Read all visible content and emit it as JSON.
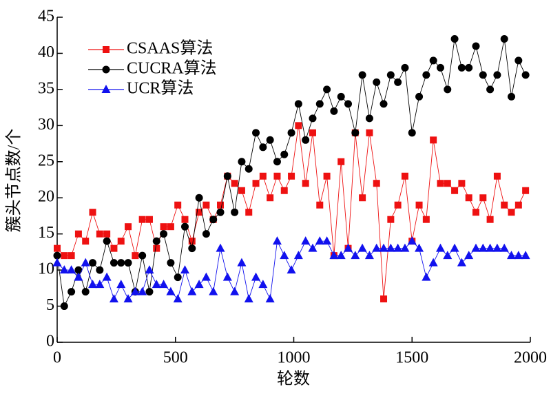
{
  "chart_data": {
    "type": "line",
    "xlabel": "轮数",
    "ylabel": "簇头节点数/个",
    "x": [
      0,
      30,
      60,
      90,
      120,
      150,
      180,
      210,
      240,
      270,
      300,
      330,
      360,
      390,
      420,
      450,
      480,
      510,
      540,
      570,
      600,
      630,
      660,
      690,
      720,
      750,
      780,
      810,
      840,
      870,
      900,
      930,
      960,
      990,
      1020,
      1050,
      1080,
      1110,
      1140,
      1170,
      1200,
      1230,
      1260,
      1290,
      1320,
      1350,
      1380,
      1410,
      1440,
      1470,
      1500,
      1530,
      1560,
      1590,
      1620,
      1650,
      1680,
      1710,
      1740,
      1770,
      1800,
      1830,
      1860,
      1890,
      1920,
      1950,
      1980
    ],
    "series": [
      {
        "name": "CSAAS算法",
        "color": "#ee1111",
        "marker": "square",
        "values": [
          13,
          12,
          12,
          15,
          14,
          18,
          15,
          15,
          13,
          14,
          16,
          12,
          17,
          17,
          13,
          16,
          16,
          19,
          17,
          14,
          18,
          19,
          17,
          19,
          23,
          22,
          21,
          18,
          22,
          23,
          20,
          23,
          21,
          23,
          30,
          22,
          29,
          19,
          23,
          12,
          25,
          13,
          29,
          20,
          29,
          22,
          6,
          17,
          19,
          23,
          14,
          19,
          17,
          28,
          22,
          22,
          21,
          22,
          20,
          18,
          20,
          17,
          23,
          19,
          18,
          19,
          21
        ]
      },
      {
        "name": "CUCRA算法",
        "color": "#000000",
        "marker": "circle",
        "values": [
          12,
          5,
          7,
          10,
          7,
          11,
          10,
          14,
          11,
          11,
          11,
          7,
          12,
          7,
          14,
          15,
          11,
          9,
          16,
          13,
          20,
          15,
          17,
          18,
          23,
          18,
          25,
          24,
          29,
          27,
          28,
          25,
          26,
          29,
          33,
          28,
          31,
          33,
          35,
          32,
          34,
          33,
          29,
          37,
          31,
          36,
          33,
          37,
          36,
          38,
          29,
          34,
          37,
          39,
          38,
          35,
          42,
          38,
          38,
          41,
          37,
          35,
          37,
          42,
          34,
          39,
          37
        ]
      },
      {
        "name": "UCR算法",
        "color": "#1111ee",
        "marker": "triangle",
        "values": [
          11,
          10,
          10,
          9,
          11,
          8,
          8,
          9,
          6,
          8,
          6,
          7,
          7,
          10,
          8,
          8,
          7,
          6,
          10,
          7,
          8,
          9,
          7,
          13,
          9,
          7,
          11,
          6,
          9,
          8,
          6,
          14,
          12,
          10,
          12,
          14,
          13,
          14,
          14,
          12,
          12,
          13,
          12,
          13,
          12,
          13,
          13,
          13,
          13,
          13,
          14,
          13,
          9,
          11,
          13,
          12,
          13,
          11,
          12,
          13,
          13,
          13,
          13,
          13,
          12,
          12,
          12
        ]
      }
    ],
    "xlim": [
      0,
      2000
    ],
    "xticks": [
      0,
      500,
      1000,
      1500,
      2000
    ],
    "ylim": [
      0,
      45
    ],
    "yticks": [
      0,
      5,
      10,
      15,
      20,
      25,
      30,
      35,
      40,
      45
    ],
    "legend": "upper left"
  }
}
